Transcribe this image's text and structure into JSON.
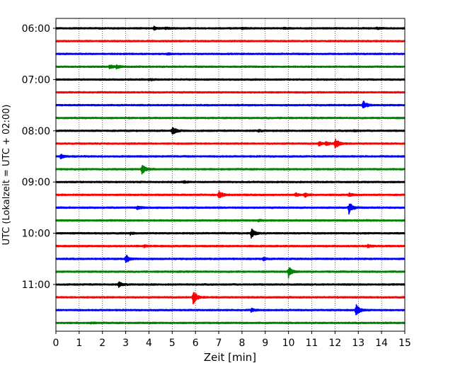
{
  "chart_data": {
    "type": "line",
    "title": "",
    "xlabel": "Zeit  [min]",
    "ylabel": "UTC (Lokalzeit = UTC + 02:00)",
    "xlim": [
      0,
      15
    ],
    "xticks": [
      0,
      1,
      2,
      3,
      4,
      5,
      6,
      7,
      8,
      9,
      10,
      11,
      12,
      13,
      14,
      15
    ],
    "yticks": [
      "06:00",
      "07:00",
      "08:00",
      "09:00",
      "10:00",
      "11:00"
    ],
    "grid": "vertical dotted",
    "trace_interval_min": 15,
    "trace_colors": [
      "#000000",
      "#ff0000",
      "#0000ff",
      "#008000"
    ],
    "traces": [
      {
        "start": "06:00",
        "color": "#000000",
        "events": [
          {
            "t": 4.2,
            "amp": 0.25
          },
          {
            "t": 4.7,
            "amp": 0.15
          },
          {
            "t": 8.0,
            "amp": 0.12
          },
          {
            "t": 9.8,
            "amp": 0.12
          },
          {
            "t": 13.8,
            "amp": 0.15
          }
        ]
      },
      {
        "start": "06:15",
        "color": "#ff0000",
        "events": []
      },
      {
        "start": "06:30",
        "color": "#0000ff",
        "events": [
          {
            "t": 4.8,
            "amp": 0.12
          }
        ]
      },
      {
        "start": "06:45",
        "color": "#008000",
        "events": [
          {
            "t": 2.3,
            "amp": 0.35
          },
          {
            "t": 2.6,
            "amp": 0.2
          }
        ]
      },
      {
        "start": "07:00",
        "color": "#000000",
        "events": [
          {
            "t": 4.0,
            "amp": 0.12
          }
        ]
      },
      {
        "start": "07:15",
        "color": "#ff0000",
        "events": []
      },
      {
        "start": "07:30",
        "color": "#0000ff",
        "events": [
          {
            "t": 13.2,
            "amp": 0.7
          }
        ]
      },
      {
        "start": "07:45",
        "color": "#008000",
        "events": []
      },
      {
        "start": "08:00",
        "color": "#000000",
        "events": [
          {
            "t": 5.0,
            "amp": 0.8
          },
          {
            "t": 8.7,
            "amp": 0.12
          },
          {
            "t": 12.8,
            "amp": 0.12
          }
        ]
      },
      {
        "start": "08:15",
        "color": "#ff0000",
        "events": [
          {
            "t": 11.3,
            "amp": 0.35
          },
          {
            "t": 11.6,
            "amp": 0.35
          },
          {
            "t": 12.0,
            "amp": 0.9
          }
        ]
      },
      {
        "start": "08:30",
        "color": "#0000ff",
        "events": [
          {
            "t": 0.2,
            "amp": 0.3
          }
        ]
      },
      {
        "start": "08:45",
        "color": "#008000",
        "events": [
          {
            "t": 3.7,
            "amp": 0.8
          }
        ]
      },
      {
        "start": "09:00",
        "color": "#000000",
        "events": [
          {
            "t": 5.5,
            "amp": 0.15
          }
        ]
      },
      {
        "start": "09:15",
        "color": "#ff0000",
        "events": [
          {
            "t": 7.0,
            "amp": 0.7
          },
          {
            "t": 10.3,
            "amp": 0.25
          },
          {
            "t": 10.7,
            "amp": 0.3
          },
          {
            "t": 12.6,
            "amp": 0.25
          }
        ]
      },
      {
        "start": "09:30",
        "color": "#0000ff",
        "events": [
          {
            "t": 3.5,
            "amp": 0.3
          },
          {
            "t": 12.6,
            "amp": 0.95
          }
        ]
      },
      {
        "start": "09:45",
        "color": "#008000",
        "events": [
          {
            "t": 8.7,
            "amp": 0.15
          }
        ]
      },
      {
        "start": "10:00",
        "color": "#000000",
        "events": [
          {
            "t": 3.2,
            "amp": 0.2
          },
          {
            "t": 8.4,
            "amp": 0.8
          }
        ]
      },
      {
        "start": "10:15",
        "color": "#ff0000",
        "events": [
          {
            "t": 3.8,
            "amp": 0.15
          },
          {
            "t": 13.4,
            "amp": 0.25
          }
        ]
      },
      {
        "start": "10:30",
        "color": "#0000ff",
        "events": [
          {
            "t": 3.0,
            "amp": 0.75
          },
          {
            "t": 8.9,
            "amp": 0.25
          }
        ]
      },
      {
        "start": "10:45",
        "color": "#008000",
        "events": [
          {
            "t": 10.0,
            "amp": 0.95
          }
        ]
      },
      {
        "start": "11:00",
        "color": "#000000",
        "events": [
          {
            "t": 2.7,
            "amp": 0.4
          }
        ]
      },
      {
        "start": "11:15",
        "color": "#ff0000",
        "events": [
          {
            "t": 5.9,
            "amp": 1.3
          }
        ]
      },
      {
        "start": "11:30",
        "color": "#0000ff",
        "events": [
          {
            "t": 8.4,
            "amp": 0.25
          },
          {
            "t": 12.9,
            "amp": 1.0
          }
        ]
      },
      {
        "start": "11:45",
        "color": "#008000",
        "events": [
          {
            "t": 1.5,
            "amp": 0.1
          }
        ]
      }
    ]
  }
}
